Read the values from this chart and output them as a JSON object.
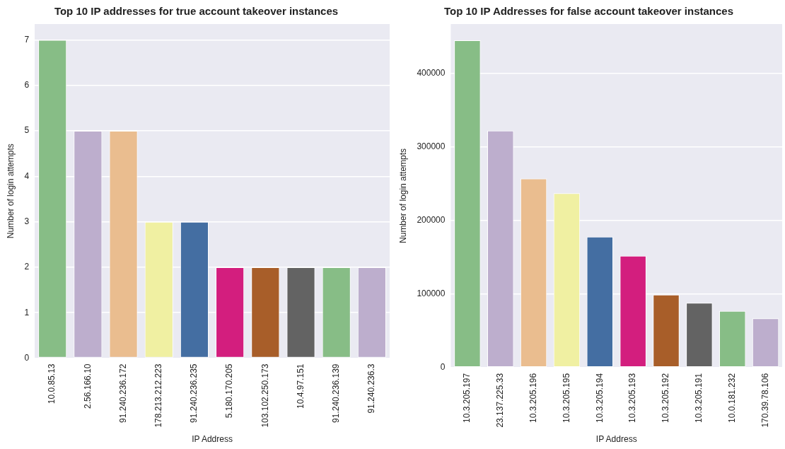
{
  "chart_data": [
    {
      "type": "bar",
      "title": "Top 10 IP addresses for true account takeover instances",
      "xlabel": "IP Address",
      "ylabel": "Number of login attempts",
      "categories": [
        "10.0.85.13",
        "2.56.166.10",
        "91.240.236.172",
        "178.213.212.223",
        "91.240.236.235",
        "5.180.170.205",
        "103.102.250.173",
        "10.4.97.151",
        "91.240.236.139",
        "91.240.236.3"
      ],
      "values": [
        7,
        5,
        5,
        3,
        3,
        2,
        2,
        2,
        2,
        2
      ],
      "colors": [
        "#87bd86",
        "#bdaecd",
        "#eabd8f",
        "#f0f0a2",
        "#446ea2",
        "#d31e7e",
        "#a85e29",
        "#636363",
        "#87bd86",
        "#bdaecd"
      ],
      "ylim": [
        0,
        7.35
      ],
      "yticks": [
        0,
        1,
        2,
        3,
        4,
        5,
        6,
        7
      ],
      "grid": "y",
      "legend": false
    },
    {
      "type": "bar",
      "title": "Top 10 IP Addresses for false account takeover instances",
      "xlabel": "IP Address",
      "ylabel": "Number of login attempts",
      "categories": [
        "10.3.205.197",
        "23.137.225.33",
        "10.3.205.196",
        "10.3.205.195",
        "10.3.205.194",
        "10.3.205.193",
        "10.3.205.192",
        "10.3.205.191",
        "10.0.181.232",
        "170.39.78.106"
      ],
      "values": [
        445000,
        322000,
        257000,
        237000,
        178000,
        152000,
        99000,
        88000,
        77000,
        67000
      ],
      "colors": [
        "#87bd86",
        "#bdaecd",
        "#eabd8f",
        "#f0f0a2",
        "#446ea2",
        "#d31e7e",
        "#a85e29",
        "#636363",
        "#87bd86",
        "#bdaecd"
      ],
      "ylim": [
        0,
        467000
      ],
      "yticks": [
        0,
        100000,
        200000,
        300000,
        400000
      ],
      "grid": "y",
      "legend": false
    }
  ]
}
